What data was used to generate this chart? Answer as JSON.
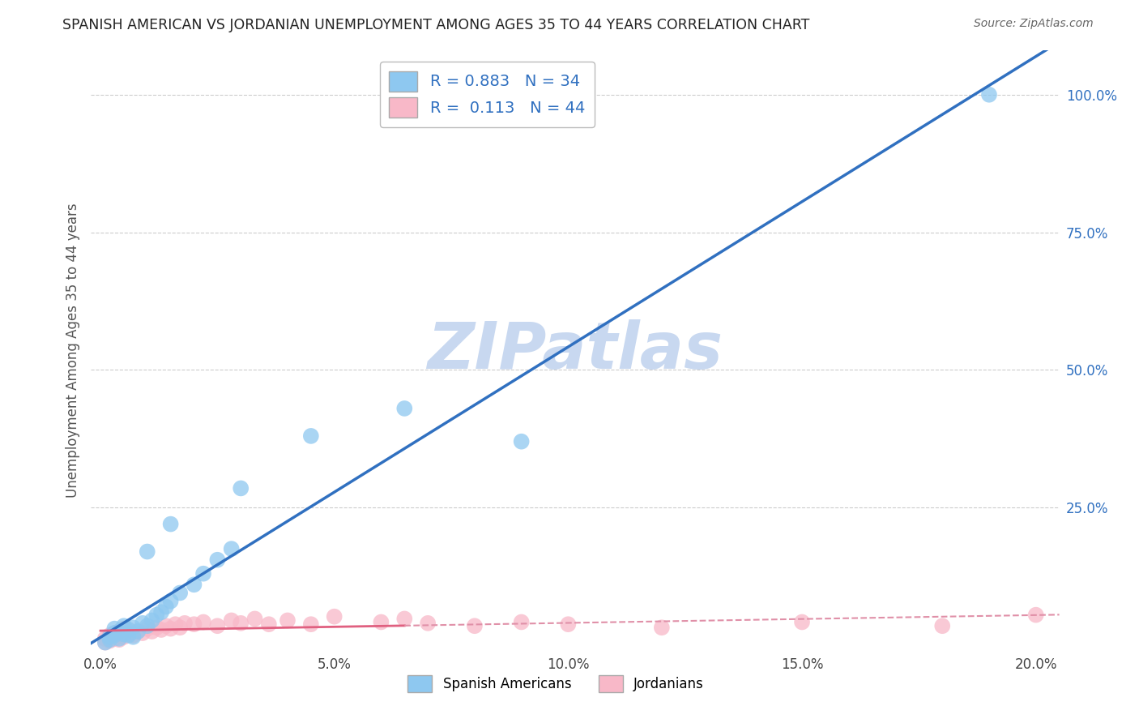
{
  "title": "SPANISH AMERICAN VS JORDANIAN UNEMPLOYMENT AMONG AGES 35 TO 44 YEARS CORRELATION CHART",
  "source": "Source: ZipAtlas.com",
  "ylabel": "Unemployment Among Ages 35 to 44 years",
  "x_tick_labels": [
    "0.0%",
    "5.0%",
    "10.0%",
    "15.0%",
    "20.0%"
  ],
  "x_tick_values": [
    0.0,
    0.05,
    0.1,
    0.15,
    0.2
  ],
  "y_tick_labels": [
    "100.0%",
    "75.0%",
    "50.0%",
    "25.0%"
  ],
  "y_tick_values": [
    1.0,
    0.75,
    0.5,
    0.25
  ],
  "xlim": [
    -0.002,
    0.205
  ],
  "ylim": [
    -0.01,
    1.08
  ],
  "legend_entries": [
    {
      "label": "Spanish Americans",
      "color": "#8EC8F0",
      "R": 0.883,
      "N": 34
    },
    {
      "label": "Jordanians",
      "color": "#F8B8C8",
      "R": 0.113,
      "N": 44
    }
  ],
  "blue_scatter_x": [
    0.001,
    0.002,
    0.002,
    0.003,
    0.003,
    0.003,
    0.004,
    0.004,
    0.005,
    0.005,
    0.006,
    0.006,
    0.007,
    0.007,
    0.008,
    0.009,
    0.01,
    0.011,
    0.012,
    0.013,
    0.014,
    0.015,
    0.017,
    0.02,
    0.022,
    0.025,
    0.028,
    0.01,
    0.015,
    0.03,
    0.045,
    0.065,
    0.09,
    0.19
  ],
  "blue_scatter_y": [
    0.005,
    0.01,
    0.015,
    0.018,
    0.022,
    0.03,
    0.012,
    0.025,
    0.02,
    0.035,
    0.018,
    0.028,
    0.015,
    0.032,
    0.025,
    0.04,
    0.035,
    0.045,
    0.055,
    0.06,
    0.07,
    0.08,
    0.095,
    0.11,
    0.13,
    0.155,
    0.175,
    0.17,
    0.22,
    0.285,
    0.38,
    0.43,
    0.37,
    1.0
  ],
  "pink_scatter_x": [
    0.001,
    0.001,
    0.002,
    0.002,
    0.003,
    0.003,
    0.004,
    0.004,
    0.005,
    0.005,
    0.006,
    0.006,
    0.007,
    0.008,
    0.009,
    0.01,
    0.011,
    0.012,
    0.013,
    0.014,
    0.015,
    0.016,
    0.017,
    0.018,
    0.02,
    0.022,
    0.025,
    0.028,
    0.03,
    0.033,
    0.036,
    0.04,
    0.045,
    0.05,
    0.06,
    0.065,
    0.07,
    0.08,
    0.09,
    0.1,
    0.12,
    0.15,
    0.18,
    0.2
  ],
  "pink_scatter_y": [
    0.005,
    0.012,
    0.008,
    0.018,
    0.012,
    0.022,
    0.01,
    0.025,
    0.015,
    0.03,
    0.02,
    0.028,
    0.018,
    0.025,
    0.022,
    0.03,
    0.025,
    0.032,
    0.028,
    0.035,
    0.03,
    0.038,
    0.032,
    0.04,
    0.038,
    0.042,
    0.035,
    0.045,
    0.04,
    0.048,
    0.038,
    0.045,
    0.038,
    0.052,
    0.042,
    0.048,
    0.04,
    0.035,
    0.042,
    0.038,
    0.032,
    0.042,
    0.035,
    0.055
  ],
  "blue_color": "#8EC8F0",
  "pink_color": "#F8B8C8",
  "blue_line_color": "#3070C0",
  "pink_line_color": "#E06080",
  "pink_line_dash": "#E090A8",
  "grid_color": "#CCCCCC",
  "background_color": "#FFFFFF",
  "watermark_text": "ZIPatlas",
  "watermark_color": "#C8D8F0"
}
